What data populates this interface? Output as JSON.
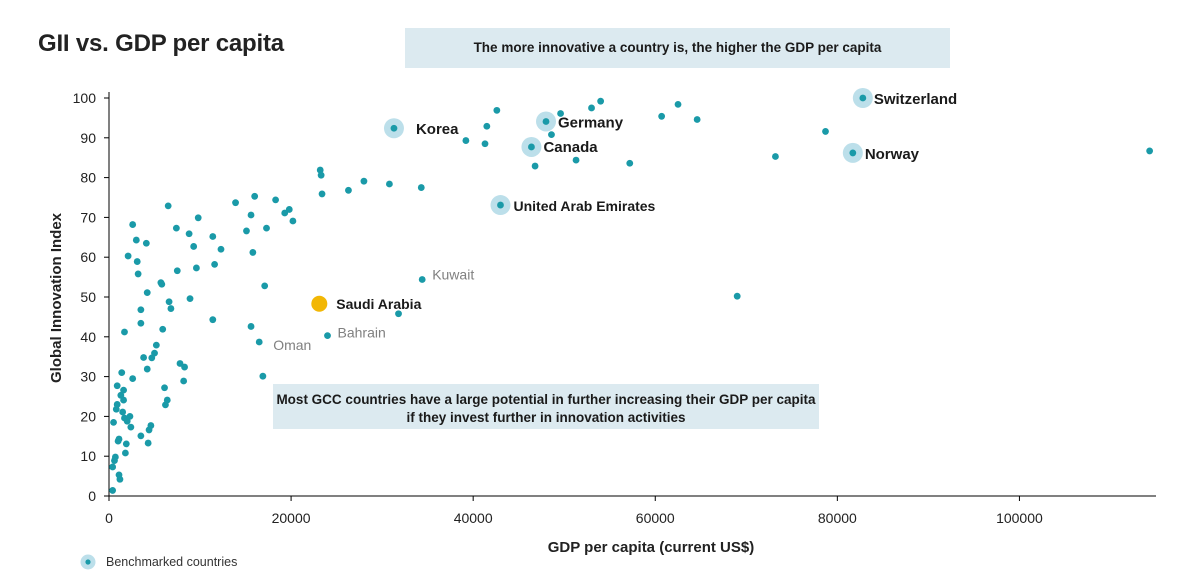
{
  "chart_data": {
    "type": "scatter",
    "title": "GII vs. GDP per capita",
    "xlabel": "GDP per capita (current US$)",
    "ylabel": "Global Innovation Index",
    "xlim": [
      0,
      115000
    ],
    "ylim": [
      0,
      100
    ],
    "xticks": [
      0,
      20000,
      40000,
      60000,
      80000,
      100000
    ],
    "yticks": [
      0,
      10,
      20,
      30,
      40,
      50,
      60,
      70,
      80,
      90,
      100
    ],
    "annotations": {
      "top": "The more innovative a country is, the higher the GDP per capita",
      "bottom": "Most GCC countries have a large potential in further increasing their GDP per capita if they invest further in innovation activities"
    },
    "legend": "Benchmarked countries",
    "colors": {
      "point": "#1a9aa8",
      "halo": "#bcdfea",
      "highlight": "#f2b705"
    },
    "labeled_points": [
      {
        "name": "Switzerland",
        "x": 82800,
        "y": 100,
        "benchmark": true,
        "style": "bold-large"
      },
      {
        "name": "Norway",
        "x": 81700,
        "y": 86.2,
        "benchmark": true,
        "style": "bold-large"
      },
      {
        "name": "Korea",
        "x": 31300,
        "y": 92.4,
        "benchmark": true,
        "style": "bold-large"
      },
      {
        "name": "Germany",
        "x": 48000,
        "y": 94.1,
        "benchmark": true,
        "style": "bold-large"
      },
      {
        "name": "Canada",
        "x": 46400,
        "y": 87.7,
        "benchmark": true,
        "style": "bold-large"
      },
      {
        "name": "United Arab Emirates",
        "x": 43000,
        "y": 73.1,
        "benchmark": true,
        "style": "bold"
      },
      {
        "name": "Saudi Arabia",
        "x": 23100,
        "y": 48.3,
        "benchmark": false,
        "highlight": true,
        "style": "bold"
      },
      {
        "name": "Kuwait",
        "x": 34400,
        "y": 54.4,
        "benchmark": false,
        "style": "minor"
      },
      {
        "name": "Bahrain",
        "x": 24000,
        "y": 40.3,
        "benchmark": false,
        "style": "minor"
      },
      {
        "name": "Oman",
        "x": 16500,
        "y": 38.7,
        "benchmark": false,
        "style": "minor"
      }
    ],
    "points": [
      [
        114300,
        86.7
      ],
      [
        73200,
        85.3
      ],
      [
        78700,
        91.6
      ],
      [
        69000,
        50.2
      ],
      [
        64600,
        94.6
      ],
      [
        62500,
        98.4
      ],
      [
        60700,
        95.4
      ],
      [
        57200,
        83.6
      ],
      [
        54000,
        99.2
      ],
      [
        53000,
        97.5
      ],
      [
        51300,
        84.4
      ],
      [
        49600,
        96.1
      ],
      [
        48600,
        90.8
      ],
      [
        46800,
        82.9
      ],
      [
        42600,
        96.9
      ],
      [
        41500,
        92.9
      ],
      [
        41300,
        88.5
      ],
      [
        39200,
        89.3
      ],
      [
        34300,
        77.5
      ],
      [
        30800,
        78.4
      ],
      [
        28000,
        79.1
      ],
      [
        26300,
        76.8
      ],
      [
        23200,
        81.9
      ],
      [
        23300,
        80.6
      ],
      [
        23400,
        75.9
      ],
      [
        31800,
        45.8
      ],
      [
        20200,
        69.1
      ],
      [
        19800,
        72.0
      ],
      [
        19300,
        71.1
      ],
      [
        18300,
        74.4
      ],
      [
        16000,
        75.3
      ],
      [
        15600,
        70.6
      ],
      [
        15100,
        66.6
      ],
      [
        15800,
        61.2
      ],
      [
        17300,
        67.3
      ],
      [
        17100,
        52.8
      ],
      [
        15600,
        42.6
      ],
      [
        16900,
        30.1
      ],
      [
        13900,
        73.7
      ],
      [
        12300,
        62.0
      ],
      [
        11600,
        58.2
      ],
      [
        11400,
        65.2
      ],
      [
        11400,
        44.3
      ],
      [
        9800,
        69.9
      ],
      [
        9600,
        57.3
      ],
      [
        9300,
        62.7
      ],
      [
        8900,
        49.6
      ],
      [
        8800,
        65.9
      ],
      [
        8200,
        28.9
      ],
      [
        8300,
        32.4
      ],
      [
        7800,
        33.3
      ],
      [
        7500,
        56.6
      ],
      [
        7400,
        67.3
      ],
      [
        6800,
        47.1
      ],
      [
        6600,
        48.8
      ],
      [
        6500,
        72.9
      ],
      [
        6200,
        22.9
      ],
      [
        6400,
        24.1
      ],
      [
        6100,
        27.2
      ],
      [
        5900,
        41.9
      ],
      [
        5700,
        53.6
      ],
      [
        5800,
        53.2
      ],
      [
        5200,
        37.9
      ],
      [
        5000,
        35.9
      ],
      [
        4700,
        34.7
      ],
      [
        4600,
        17.7
      ],
      [
        4400,
        16.6
      ],
      [
        4300,
        13.3
      ],
      [
        4200,
        51.1
      ],
      [
        4200,
        31.9
      ],
      [
        4100,
        63.5
      ],
      [
        3800,
        34.8
      ],
      [
        3500,
        15.1
      ],
      [
        3500,
        43.4
      ],
      [
        3500,
        46.8
      ],
      [
        3200,
        55.8
      ],
      [
        3100,
        58.9
      ],
      [
        3000,
        64.3
      ],
      [
        2600,
        68.2
      ],
      [
        2600,
        29.5
      ],
      [
        2400,
        17.3
      ],
      [
        2300,
        20.0
      ],
      [
        2100,
        60.3
      ],
      [
        2000,
        18.8
      ],
      [
        1900,
        13.1
      ],
      [
        1800,
        10.8
      ],
      [
        1700,
        41.2
      ],
      [
        1700,
        19.6
      ],
      [
        1600,
        26.6
      ],
      [
        1600,
        24.1
      ],
      [
        1500,
        21.1
      ],
      [
        1400,
        31.0
      ],
      [
        1300,
        25.3
      ],
      [
        1200,
        4.2
      ],
      [
        1100,
        5.3
      ],
      [
        1100,
        14.3
      ],
      [
        1000,
        13.8
      ],
      [
        900,
        27.7
      ],
      [
        900,
        23.0
      ],
      [
        800,
        21.8
      ],
      [
        700,
        9.8
      ],
      [
        600,
        8.9
      ],
      [
        500,
        18.5
      ],
      [
        400,
        1.4
      ],
      [
        400,
        7.3
      ]
    ]
  }
}
